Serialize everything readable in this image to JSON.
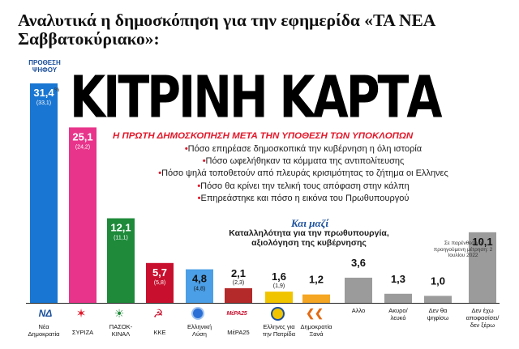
{
  "headline": "Αναλυτικά η δημοσκόπηση για την εφημερίδα «ΤΑ ΝΕΑ Σαββατοκύριακο»:",
  "vote_intent_label": "ΠΡΟΘΕΣΗ ΨΗΦΟΥ",
  "percent_mark": "%",
  "poll_title": "ΚΙΤΡΙΝΗ ΚΑΡΤΑ",
  "poll_subtitle": "Η ΠΡΩΤΗ ΔΗΜΟΣΚΟΠΗΣΗ ΜΕΤΑ ΤΗΝ ΥΠΟΘΕΣΗ ΤΩΝ ΥΠΟΚΛΟΠΩΝ",
  "bullets": [
    "Πόσο επηρέασε δημοσκοπικά την κυβέρνηση η όλη ιστορία",
    "Πόσο ωφελήθηκαν τα κόμματα της αντιπολίτευσης",
    "Πόσο ψηλά τοποθετούν από πλευράς κρισιμότητας το ζήτημα οι Ελληνες",
    "Πόσο θα κρίνει την τελική τους απόφαση στην κάλπη",
    "Επηρεάστηκε και πόσο η εικόνα του Πρωθυπουργού"
  ],
  "bullet_marker": "•",
  "kai_mazi": "Και μαζί",
  "kai_mazi_sub": "Καταλληλότητα για την πρωθυπουργία, αξιολόγηση της κυβέρνησης",
  "note": "Σε παρένθεση η προηγούμενη μέτρηση: 2 Ιουλίου 2022",
  "logos": {
    "nd": "ΝΔ",
    "syriza": "✶",
    "pasok": "☀",
    "kke": "☭",
    "mera25": "ΜέΡΑ25",
    "dimokratia": "❮❮"
  },
  "colors": {
    "nd": "#1976d2",
    "syriza": "#e8348b",
    "pasok": "#1e8a3a",
    "kke": "#c8102e",
    "elliniki_lysi": "#4b9fe6",
    "mera25": "#b42a2a",
    "ellines": "#f1c400",
    "dimokratia": "#f5a623",
    "gray": "#9b9b9b",
    "accent_red": "#e2182a",
    "accent_blue": "#1a4f9c"
  },
  "chart_data": {
    "type": "bar",
    "title": "ΚΙΤΡΙΝΗ ΚΑΡΤΑ",
    "ylabel": "ΠΡΟΘΕΣΗ ΨΗΦΟΥ",
    "unit": "%",
    "categories": [
      "Νέα Δημοκρατία",
      "ΣΥΡΙΖΑ",
      "ΠΑΣΟΚ-ΚΙΝΑΛ",
      "ΚΚΕ",
      "Ελληνική Λύση",
      "ΜέΡΑ25",
      "Ελληνες για την Πατρίδα",
      "Δημοκρατία Ξανά",
      "Αλλο",
      "Ακυρο/ λευκό",
      "Δεν θα ψηφίσω",
      "Δεν έχω αποφασίσει/ δεν ξέρω"
    ],
    "value_labels": [
      "31,4",
      "25,1",
      "12,1",
      "5,7",
      "4,8",
      "2,1",
      "1,6",
      "1,2",
      "3,6",
      "1,3",
      "1,0",
      "10,1"
    ],
    "values": [
      31.4,
      25.1,
      12.1,
      5.7,
      4.8,
      2.1,
      1.6,
      1.2,
      3.6,
      1.3,
      1.0,
      10.1
    ],
    "previous_labels": [
      "(33,1)",
      "(24,2)",
      "(11,1)",
      "(5,8)",
      "(4,8)",
      "(2,3)",
      "(1,9)",
      "",
      "",
      "",
      "",
      ""
    ],
    "previous": [
      33.1,
      24.2,
      11.1,
      5.8,
      4.8,
      2.3,
      1.9,
      null,
      null,
      null,
      null,
      null
    ],
    "series_colors": [
      "#1976d2",
      "#e8348b",
      "#1e8a3a",
      "#c8102e",
      "#4b9fe6",
      "#b42a2a",
      "#f1c400",
      "#f5a623",
      "#9b9b9b",
      "#9b9b9b",
      "#9b9b9b",
      "#9b9b9b"
    ],
    "ylim": [
      0,
      31.4
    ],
    "grid": false,
    "legend": "none"
  }
}
